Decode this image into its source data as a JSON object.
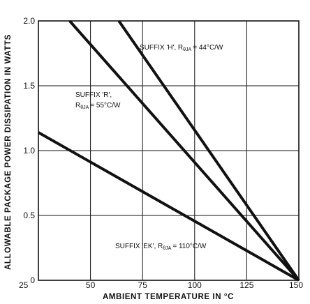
{
  "chart_data": {
    "type": "line",
    "xlabel": "AMBIENT TEMPERATURE IN °C",
    "ylabel": "ALLOWABLE PACKAGE POWER DISSIPATION IN WATTS",
    "xlim": [
      25,
      150
    ],
    "ylim": [
      0,
      2.0
    ],
    "x_ticks": [
      "25",
      "50",
      "75",
      "100",
      "125",
      "150"
    ],
    "y_ticks": [
      "0",
      "0.5",
      "1.0",
      "1.5",
      "2.0"
    ],
    "grid": true,
    "series": [
      {
        "name": "SUFFIX 'H', RθJA = 44°C/W",
        "x": [
          63.6,
          150
        ],
        "y": [
          2.0,
          0
        ]
      },
      {
        "name": "SUFFIX 'R', RθJA = 55°C/W",
        "x": [
          40.0,
          150
        ],
        "y": [
          2.0,
          0
        ]
      },
      {
        "name": "SUFFIX 'EK', RθJA = 110°C/W",
        "x": [
          25,
          150
        ],
        "y": [
          1.14,
          0
        ]
      }
    ],
    "annotations": {
      "h": {
        "line1": "SUFFIX 'H', R",
        "sub": "θJA",
        "line2": "= 44°C/W"
      },
      "r": {
        "line1": "SUFFIX 'R',",
        "line2a": "R",
        "sub": "θJA",
        "line2b": "= 55°C/W"
      },
      "ek": {
        "line1": "SUFFIX 'EK', R",
        "sub": "θJA",
        "line2": "= 110°C/W"
      }
    }
  }
}
